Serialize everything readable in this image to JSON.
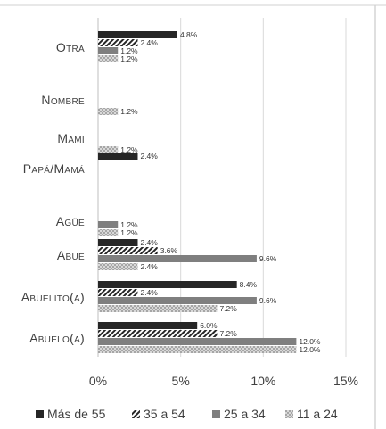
{
  "chart_data": {
    "type": "bar",
    "orientation": "horizontal",
    "categories": [
      "Otra",
      "Nombre",
      "Mami",
      "Papá/Mamá",
      "Agüe",
      "Abue",
      "Abuelito(a)",
      "Abuelo(a)"
    ],
    "series": [
      {
        "name": "Más de 55",
        "pattern": "solid",
        "color": "#262626",
        "values": [
          4.8,
          null,
          null,
          2.4,
          null,
          2.4,
          8.4,
          6.0
        ]
      },
      {
        "name": "35 a 54",
        "pattern": "diagonal-hatch",
        "color": "#262626",
        "values": [
          2.4,
          null,
          null,
          null,
          null,
          3.6,
          2.4,
          7.2
        ]
      },
      {
        "name": "25 a 34",
        "pattern": "solid",
        "color": "#7f7f7f",
        "values": [
          1.2,
          null,
          null,
          null,
          1.2,
          9.6,
          9.6,
          12.0
        ]
      },
      {
        "name": "11 a 24",
        "pattern": "checker",
        "color": "#a6a6a6",
        "values": [
          1.2,
          1.2,
          1.2,
          null,
          1.2,
          2.4,
          7.2,
          12.0
        ]
      }
    ],
    "xlim": [
      0,
      15
    ],
    "xticks": [
      "0%",
      "5%",
      "10%",
      "15%"
    ],
    "value_suffix": "%",
    "grid": true,
    "legend_position": "bottom"
  }
}
